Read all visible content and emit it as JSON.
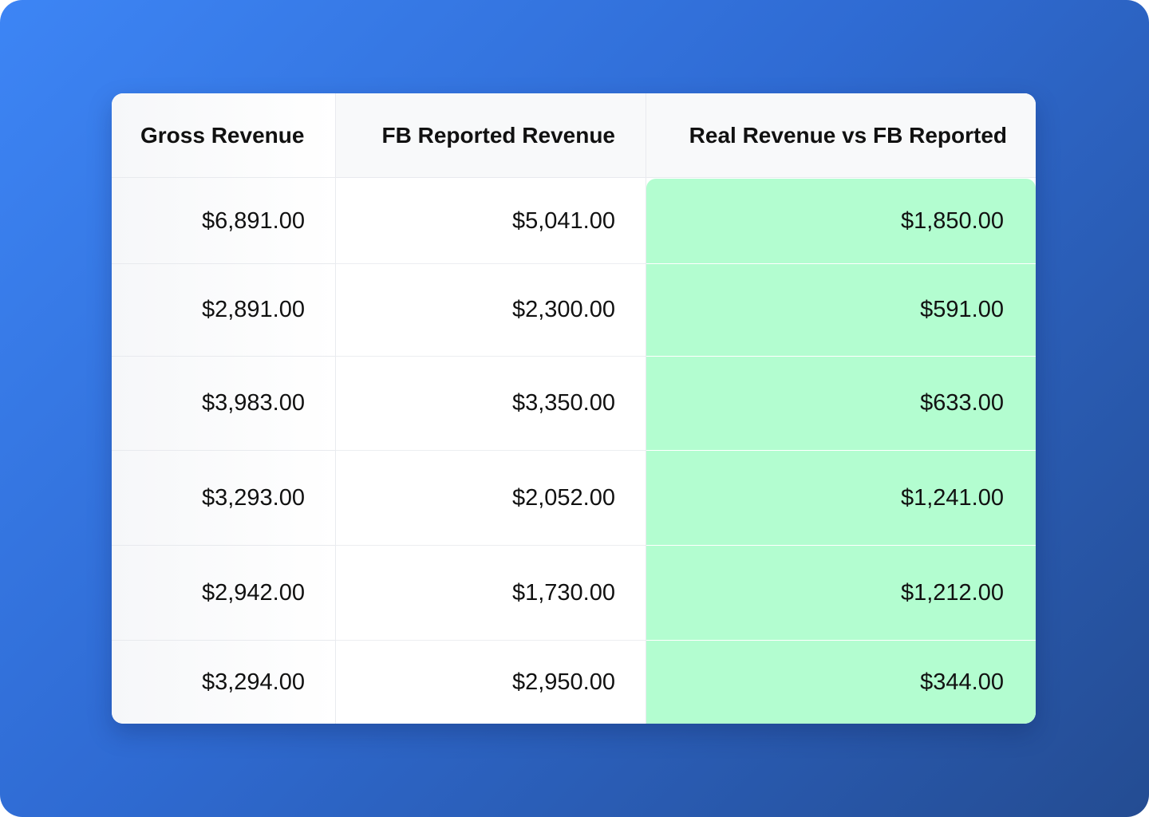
{
  "table": {
    "columns": [
      {
        "header": "Gross Revenue",
        "values": [
          "$6,891.00",
          "$2,891.00",
          "$3,983.00",
          "$3,293.00",
          "$2,942.00",
          "$3,294.00"
        ]
      },
      {
        "header": "FB Reported Revenue",
        "values": [
          "$5,041.00",
          "$2,300.00",
          "$3,350.00",
          "$2,052.00",
          "$1,730.00",
          "$2,950.00"
        ]
      },
      {
        "header": "Real Revenue vs FB Reported",
        "values": [
          "$1,850.00",
          "$591.00",
          "$633.00",
          "$1,241.00",
          "$1,212.00",
          "$344.00"
        ]
      }
    ],
    "highlight_color": "#b3fdd0"
  }
}
